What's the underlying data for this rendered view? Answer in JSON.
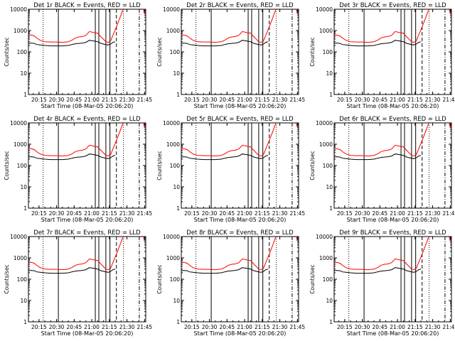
{
  "chart_data": {
    "type": "line",
    "xlabel_template": "Start Time (08-Mar-05 20:06:20)",
    "ylabel": "Counts/sec",
    "y_scale": "log",
    "ylim": [
      1,
      10000
    ],
    "y_ticks": [
      "1",
      "10",
      "100",
      "1000",
      "10000"
    ],
    "xlim_minutes_of_day": [
      1206,
      1306
    ],
    "x_tick_labels": [
      "20:15",
      "20:30",
      "20:45",
      "21:00",
      "21:15",
      "21:30",
      "21:45"
    ],
    "x_tick_minutes": [
      1215,
      1230,
      1245,
      1260,
      1275,
      1290,
      1305
    ],
    "series_colors": {
      "black": "#000000",
      "red": "#ff0000"
    },
    "panels": [
      {
        "title": "Det 1r BLACK = Events, RED = LLD",
        "xlabel": "Start Time (08-Mar-05 20:06:20)"
      },
      {
        "title": "Det 2r BLACK = Events, RED = LLD",
        "xlabel": "Start Time (08-Mar-05 20:06:20)"
      },
      {
        "title": "Det 3r BLACK = Events, RED = LLD",
        "xlabel": "Start Time (08-Mar-05 20:06:20)"
      },
      {
        "title": "Det 4r BLACK = Events, RED = LLD",
        "xlabel": "Start Time (08-Mar-05 20:06:20)"
      },
      {
        "title": "Det 5r BLACK = Events, RED = LLD",
        "xlabel": "Start Time (08-Mar-05 20:06:20)"
      },
      {
        "title": "Det 6r BLACK = Events, RED = LLD",
        "xlabel": "Start Time (08-Mar-05 20:06:20)"
      },
      {
        "title": "Det 7r BLACK = Events, RED = LLD",
        "xlabel": "Start Time (08-Mar-05 20:06:20)"
      },
      {
        "title": "Det 8r BLACK = Events, RED = LLD",
        "xlabel": "Start Time (08-Mar-05 20:06:20)"
      },
      {
        "title": "Det 9r BLACK = Events, RED = LLD",
        "xlabel": "Start Time (08-Mar-05 20:06:20)"
      }
    ],
    "red_series": {
      "x": [
        1206,
        1208,
        1211,
        1213,
        1216,
        1220,
        1225,
        1230,
        1235,
        1240,
        1243,
        1246,
        1249,
        1252,
        1255,
        1258,
        1262,
        1265,
        1268,
        1272,
        1274,
        1276,
        1278,
        1281,
        1284,
        1286,
        1287
      ],
      "y": [
        580,
        620,
        560,
        450,
        350,
        300,
        290,
        290,
        280,
        300,
        350,
        450,
        500,
        520,
        600,
        900,
        800,
        750,
        500,
        300,
        280,
        320,
        600,
        1500,
        4000,
        8000,
        10000
      ]
    },
    "black_series": {
      "x": [
        1206,
        1208,
        1211,
        1213,
        1216,
        1220,
        1225,
        1230,
        1235,
        1240,
        1243,
        1246,
        1249,
        1252,
        1255,
        1258,
        1262,
        1265,
        1268,
        1272,
        1274,
        1276,
        1278,
        1280
      ],
      "y": [
        250,
        260,
        250,
        220,
        210,
        200,
        190,
        190,
        190,
        200,
        220,
        240,
        250,
        260,
        280,
        350,
        320,
        300,
        250,
        220,
        210,
        230,
        280,
        300
      ]
    },
    "tail_red": {
      "x": [
        1304,
        1305
      ],
      "y": [
        10000,
        6000
      ]
    },
    "vertical_markers": [
      {
        "minute": 1218.5,
        "style": "dotted"
      },
      {
        "minute": 1231.5,
        "style": "solid"
      },
      {
        "minute": 1263,
        "style": "solid"
      },
      {
        "minute": 1266,
        "style": "solid"
      },
      {
        "minute": 1272,
        "style": "solid"
      },
      {
        "minute": 1275.5,
        "style": "solid"
      },
      {
        "minute": 1281,
        "style": "dashed"
      },
      {
        "minute": 1287,
        "style": "dotted"
      },
      {
        "minute": 1300.5,
        "style": "dashdot"
      }
    ]
  }
}
